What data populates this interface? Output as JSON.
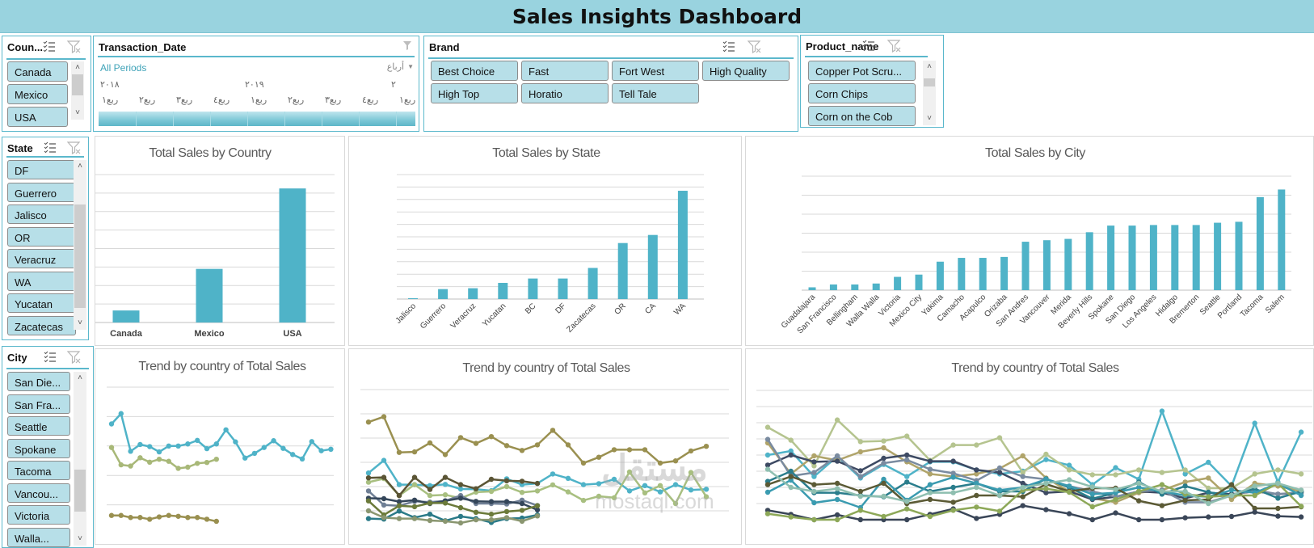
{
  "header": {
    "title": "Sales Insights Dashboard"
  },
  "colors": {
    "accent": "#4fb3c8",
    "slicer_item": "#b7dfe8",
    "title_bar": "#99d3df",
    "slicer_border": "#5bb8cc"
  },
  "icons": {
    "multiselect": "multi-select-checklist-icon",
    "clear": "clear-filter-icon"
  },
  "slicers": {
    "country": {
      "title": "Coun...",
      "items": [
        "Canada",
        "Mexico",
        "USA"
      ]
    },
    "brand": {
      "title": "Brand",
      "items": [
        "Best Choice",
        "Fast",
        "Fort West",
        "High Quality",
        "High Top",
        "Horatio",
        "Tell Tale"
      ]
    },
    "product": {
      "title": "Product_name",
      "items": [
        "Copper Pot Scru...",
        "Corn Chips",
        "Corn on the Cob"
      ]
    },
    "state": {
      "title": "State",
      "items": [
        "DF",
        "Guerrero",
        "Jalisco",
        "OR",
        "Veracruz",
        "WA",
        "Yucatan",
        "Zacatecas"
      ]
    },
    "city": {
      "title": "City",
      "items": [
        "San Die...",
        "San Fra...",
        "Seattle",
        "Spokane",
        "Tacoma",
        "Vancou...",
        "Victoria",
        "Walla..."
      ]
    }
  },
  "timeline": {
    "title": "Transaction_Date",
    "period_label": "All Periods",
    "level": "أرباع",
    "years": [
      "٢٠١٨",
      "٢٠١٩",
      "٢"
    ],
    "quarters": [
      "ربع١",
      "ربع٢",
      "ربع٣",
      "ربع٤",
      "ربع١",
      "ربع٢",
      "ربع٣",
      "ربع٤",
      "ربع١"
    ]
  },
  "watermark": {
    "logo": "مستقل",
    "text": "mostaql.com"
  },
  "chart_data": [
    {
      "type": "bar",
      "title": "Total Sales by Country",
      "categories": [
        "Canada",
        "Mexico",
        "USA"
      ],
      "values": [
        0.65,
        2.9,
        7.25
      ],
      "ylim": [
        0,
        8
      ],
      "grid": true,
      "legend": "none",
      "color": "#4fb3c8"
    },
    {
      "type": "bar",
      "title": "Total Sales by State",
      "categories": [
        "Jalisco",
        "Guerrero",
        "Veracruz",
        "Yucatan",
        "BC",
        "DF",
        "Zacatecas",
        "OR",
        "CA",
        "WA"
      ],
      "values": [
        0.07,
        0.8,
        0.87,
        1.3,
        1.65,
        1.65,
        2.5,
        4.5,
        5.15,
        8.7
      ],
      "ylim": [
        0,
        10
      ],
      "grid": true,
      "legend": "none",
      "color": "#4fb3c8"
    },
    {
      "type": "bar",
      "title": "Total Sales by City",
      "categories": [
        "Guadalajara",
        "San Francisco",
        "Bellingham",
        "Walla Walla",
        "Victoria",
        "Mexico City",
        "Yakima",
        "Camacho",
        "Acapulco",
        "Orizaba",
        "San Andres",
        "Vancouver",
        "Merida",
        "Beverly Hills",
        "Spokane",
        "San Diego",
        "Los Angeles",
        "Hidalgo",
        "Bremerton",
        "Seattle",
        "Portland",
        "Tacoma",
        "Salem"
      ],
      "values": [
        0.15,
        0.3,
        0.3,
        0.35,
        0.7,
        0.82,
        1.5,
        1.7,
        1.7,
        1.75,
        2.55,
        2.63,
        2.7,
        3.05,
        3.4,
        3.4,
        3.43,
        3.43,
        3.43,
        3.55,
        3.6,
        4.9,
        5.3
      ],
      "ylim": [
        0,
        6
      ],
      "grid": true,
      "legend": "none",
      "color": "#4fb3c8"
    },
    {
      "type": "line",
      "title": "Trend by country of Total Sales",
      "ylim": [
        0,
        5
      ],
      "grid": true,
      "legend": "none",
      "series": [
        {
          "color": "#4fb3c8",
          "values": [
            3.75,
            4.1,
            2.82,
            3.05,
            2.98,
            2.8,
            3.0,
            3.0,
            3.07,
            3.19,
            2.91,
            3.07,
            3.55,
            3.14,
            2.59,
            2.75,
            2.95,
            3.18,
            2.92,
            2.71,
            2.56,
            3.15,
            2.84,
            2.89
          ]
        },
        {
          "color": "#a8b878",
          "values": [
            2.95,
            2.36,
            2.32,
            2.6,
            2.45,
            2.55,
            2.48,
            2.24,
            2.28,
            2.41,
            2.44,
            2.55
          ]
        },
        {
          "color": "#9a9050",
          "values": [
            0.64,
            0.64,
            0.57,
            0.57,
            0.51,
            0.59,
            0.64,
            0.61,
            0.57,
            0.57,
            0.51,
            0.44
          ]
        }
      ]
    },
    {
      "type": "line",
      "title": "Trend by country of Total Sales",
      "ylim": [
        0,
        6
      ],
      "grid": true,
      "legend": "none",
      "series": [
        {
          "color": "#9a9050",
          "values": [
            4.66,
            4.88,
            3.41,
            3.43,
            3.8,
            3.32,
            4.02,
            3.78,
            4.06,
            3.69,
            3.49,
            3.72,
            4.32,
            3.72,
            2.97,
            3.21,
            3.52,
            3.52,
            3.52,
            2.97,
            3.06,
            3.47,
            3.66
          ]
        },
        {
          "color": "#4fb3c8",
          "values": [
            2.56,
            3.08,
            2.08,
            2.08,
            2.04,
            2.09,
            1.9,
            1.89,
            1.83,
            2.32,
            2.08,
            2.13,
            2.52,
            2.34,
            2.08,
            2.12,
            2.3,
            1.82,
            2.04,
            1.78,
            2.08,
            1.86,
            1.89
          ]
        },
        {
          "color": "#a8bf80",
          "values": [
            2.18,
            2.33,
            1.63,
            2.08,
            1.63,
            1.66,
            1.52,
            1.77,
            1.8,
            2.0,
            1.76,
            1.82,
            2.07,
            1.78,
            1.43,
            1.6,
            1.54,
            2.6,
            1.74,
            2.04,
            1.3,
            2.58,
            1.58
          ]
        },
        {
          "color": "#5b5535",
          "values": [
            2.36,
            2.38,
            1.63,
            2.38,
            1.88,
            2.38,
            2.08,
            1.91,
            2.3,
            2.24,
            2.22,
            2.13
          ]
        },
        {
          "color": "#6f7f95",
          "values": [
            1.82,
            1.24,
            1.21,
            1.39,
            1.36,
            1.41,
            1.63,
            1.3,
            1.3,
            1.28,
            1.44,
            1.22
          ]
        },
        {
          "color": "#34465a",
          "values": [
            1.52,
            1.5,
            1.38,
            1.44,
            1.3,
            1.41,
            1.52,
            1.39,
            1.38,
            1.38,
            1.3,
            1.04
          ]
        },
        {
          "color": "#6b7a3a",
          "values": [
            1.41,
            0.83,
            1.21,
            1.17,
            1.32,
            1.32,
            1.13,
            0.94,
            0.86,
            0.97,
            1.02,
            1.21
          ]
        },
        {
          "color": "#2a7a88",
          "values": [
            0.68,
            0.66,
            0.99,
            0.72,
            0.86,
            0.59,
            0.77,
            0.68,
            0.52,
            0.68,
            0.7,
            0.83
          ]
        },
        {
          "color": "#8a9670",
          "values": [
            1.0,
            0.72,
            0.68,
            0.68,
            0.6,
            0.57,
            0.5,
            0.63,
            0.63,
            0.72,
            0.57,
            0.79
          ]
        }
      ]
    },
    {
      "type": "line",
      "title": "Trend by country of Total Sales",
      "ylim": [
        0,
        8
      ],
      "grid": true,
      "legend": "none",
      "series": [
        {
          "color": "#4fb3c8",
          "values": [
            4.0,
            4.25,
            2.67,
            3.92,
            2.58,
            3.42,
            2.67,
            3.58,
            3.58,
            3.08,
            2.83,
            3.0,
            3.72,
            3.37,
            2.17,
            3.22,
            2.5,
            6.72,
            2.83,
            3.55,
            2.08,
            5.97,
            2.33,
            5.42
          ]
        },
        {
          "color": "#b5c48f",
          "values": [
            5.72,
            4.92,
            3.33,
            6.17,
            4.83,
            4.87,
            5.17,
            3.67,
            4.62,
            4.62,
            5.07,
            2.92,
            4.05,
            3.08,
            2.78,
            2.78,
            3.08,
            2.92,
            3.08,
            1.95,
            1.95,
            2.83,
            3.08,
            2.83
          ]
        },
        {
          "color": "#b0a46a",
          "values": [
            4.75,
            2.83,
            3.95,
            3.67,
            4.2,
            4.45,
            3.58,
            2.83,
            2.67,
            2.83,
            3.17,
            3.95,
            2.58,
            1.75,
            1.33,
            1.08,
            1.67,
            1.83,
            2.33,
            2.58,
            1.25,
            2.25,
            2.08,
            1.75
          ]
        },
        {
          "color": "#3d4a63",
          "values": [
            3.38,
            4.0,
            3.58,
            3.62,
            3.03,
            3.8,
            4.0,
            3.62,
            3.62,
            3.08,
            2.92,
            2.25,
            1.67,
            1.75,
            1.25,
            1.42,
            1.75,
            1.67,
            1.33,
            1.67,
            1.58,
            1.75,
            1.58,
            1.67
          ]
        },
        {
          "color": "#7a8ba0",
          "values": [
            4.97,
            2.7,
            2.92,
            3.95,
            2.67,
            3.5,
            3.7,
            3.12,
            2.87,
            2.42,
            3.2,
            2.67,
            2.5,
            2.08,
            1.75,
            1.42,
            1.75,
            1.83,
            1.08,
            1.08,
            1.5,
            1.83,
            1.58,
            1.7
          ]
        },
        {
          "color": "#2a7d8c",
          "values": [
            2.37,
            3.0,
            1.67,
            1.67,
            1.5,
            1.42,
            2.33,
            1.75,
            2.0,
            2.25,
            1.75,
            1.75,
            2.53,
            2.0,
            1.3,
            1.67,
            2.33,
            1.58,
            2.08,
            1.7,
            1.5,
            1.92,
            1.33,
            1.75
          ]
        },
        {
          "color": "#3a9bb0",
          "values": [
            1.7,
            2.45,
            1.05,
            1.25,
            0.75,
            2.5,
            1.2,
            2.17,
            2.63,
            2.25,
            1.83,
            2.0,
            2.5,
            2.08,
            1.58,
            1.67,
            2.0,
            1.75,
            1.5,
            1.42,
            1.83,
            1.67,
            2.25,
            1.5
          ]
        },
        {
          "color": "#5b5a35",
          "values": [
            2.17,
            2.67,
            2.17,
            2.25,
            1.75,
            2.25,
            1.0,
            1.25,
            1.08,
            1.5,
            1.5,
            1.42,
            2.2,
            1.75,
            1.95,
            1.95,
            1.17,
            0.87,
            1.2,
            1.25,
            2.17,
            0.7,
            0.7,
            0.8
          ]
        },
        {
          "color": "#3a4658",
          "values": [
            0.58,
            0.33,
            0.0,
            0.3,
            0.0,
            0.0,
            0.0,
            0.33,
            0.67,
            0.08,
            0.33,
            0.87,
            0.62,
            0.37,
            0.0,
            0.42,
            0.0,
            0.0,
            0.12,
            0.17,
            0.2,
            0.47,
            0.22,
            0.17
          ]
        },
        {
          "color": "#8da858",
          "values": [
            0.37,
            0.17,
            0.0,
            0.0,
            0.58,
            0.2,
            0.67,
            0.2,
            0.58,
            0.78,
            0.53,
            1.83,
            1.92,
            1.7,
            0.8,
            1.25,
            1.75,
            2.17,
            1.58,
            1.42,
            1.5,
            1.5,
            2.25,
            0.83
          ]
        },
        {
          "color": "#8fbfb0",
          "values": [
            3.12,
            2.0,
            1.75,
            1.92,
            1.45,
            1.45,
            1.13,
            1.67,
            1.67,
            2.0,
            1.5,
            2.0,
            2.25,
            2.47,
            2.03,
            1.87,
            2.25,
            1.75,
            1.75,
            1.0,
            1.5,
            2.08,
            2.25,
            1.83
          ]
        }
      ]
    }
  ]
}
